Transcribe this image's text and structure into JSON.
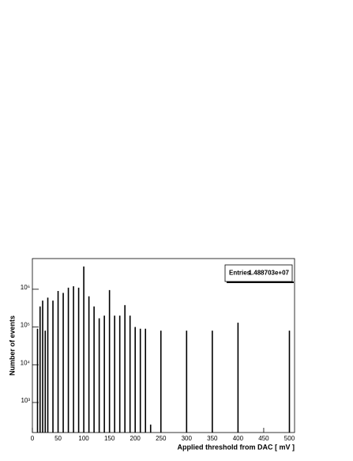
{
  "chart_data": {
    "type": "spikes",
    "xlabel": "Applied threshold from DAC   [ mV ]",
    "ylabel": "Number of events",
    "x": [
      10,
      15,
      20,
      25,
      30,
      40,
      50,
      60,
      70,
      80,
      90,
      100,
      110,
      120,
      130,
      140,
      150,
      160,
      170,
      180,
      190,
      200,
      210,
      220,
      230,
      250,
      300,
      350,
      400,
      500
    ],
    "values": [
      90000,
      350000,
      500000,
      80000,
      600000,
      500000,
      900000,
      800000,
      1100000,
      1200000,
      1100000,
      4000000,
      650000,
      350000,
      170000,
      200000,
      950000,
      200000,
      200000,
      380000,
      200000,
      100000,
      90000,
      90000,
      260,
      80000,
      80000,
      80000,
      130000,
      80000
    ],
    "color": "#000000",
    "log_y": true,
    "xlim": [
      0,
      510
    ],
    "ylim": [
      160,
      6500000
    ],
    "xticks": [
      0,
      50,
      100,
      150,
      200,
      250,
      300,
      350,
      400,
      450,
      500
    ],
    "yticks": [
      {
        "value": 1000,
        "label": "10³"
      },
      {
        "value": 10000,
        "label": "10⁴"
      },
      {
        "value": 100000,
        "label": "10⁵"
      },
      {
        "value": 1000000,
        "label": "10⁶"
      }
    ],
    "stats": {
      "label": "Entries",
      "value": "1.488703e+07"
    }
  }
}
